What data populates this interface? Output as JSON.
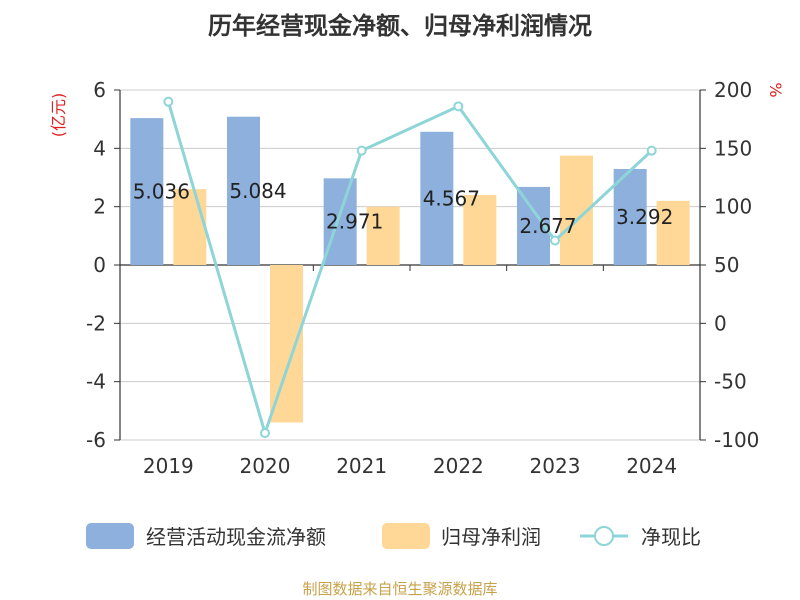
{
  "chart_data": {
    "type": "bar",
    "title": "历年经营现金净额、归母净利润情况",
    "categories": [
      "2019",
      "2020",
      "2021",
      "2022",
      "2023",
      "2024"
    ],
    "series": [
      {
        "name": "经营活动现金流净额",
        "type": "bar",
        "axis": "left",
        "color": "#8eb0dc",
        "values": [
          5.036,
          5.084,
          2.971,
          4.567,
          2.677,
          3.292
        ],
        "labels": [
          "5.036",
          "5.084",
          "2.971",
          "4.567",
          "2.677",
          "3.292"
        ]
      },
      {
        "name": "归母净利润",
        "type": "bar",
        "axis": "left",
        "color": "#ffd898",
        "values": [
          2.6,
          -5.4,
          2.0,
          2.4,
          3.75,
          2.2
        ]
      },
      {
        "name": "净现比",
        "type": "line",
        "axis": "right",
        "color": "#8ed5d8",
        "values": [
          190,
          -94,
          148,
          186,
          71,
          148
        ]
      }
    ],
    "left_axis": {
      "unit": "(亿元)",
      "ylim": [
        -6,
        6
      ],
      "ticks": [
        "6",
        "4",
        "2",
        "0",
        "-2",
        "-4",
        "-6"
      ],
      "tick_values": [
        6,
        4,
        2,
        0,
        -2,
        -4,
        -6
      ]
    },
    "right_axis": {
      "unit": "%",
      "ylim": [
        -100,
        200
      ],
      "ticks": [
        "200",
        "150",
        "100",
        "50",
        "0",
        "-50",
        "-100"
      ],
      "tick_values": [
        200,
        150,
        100,
        50,
        0,
        -50,
        -100
      ]
    },
    "legend_position": "bottom",
    "grid": true
  },
  "source": "制图数据来自恒生聚源数据库"
}
